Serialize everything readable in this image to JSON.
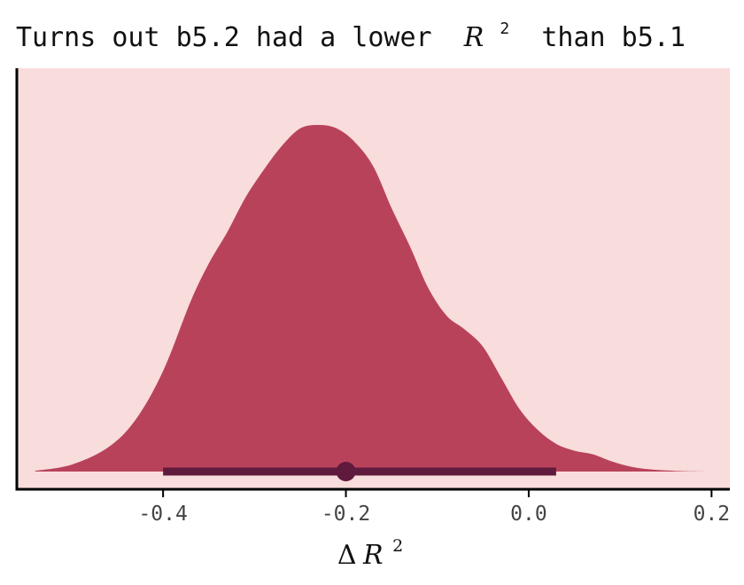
{
  "chart_data": {
    "type": "area",
    "title_parts": [
      "Turns out b5.2 had a lower ",
      "R",
      "2",
      " than b5.1"
    ],
    "xlabel_parts": [
      "Δ",
      "R",
      "2"
    ],
    "ylabel": "",
    "xlim": [
      -0.56,
      0.22
    ],
    "ylim": [
      0,
      1.0
    ],
    "xticks": [
      -0.4,
      -0.2,
      0.0,
      0.2
    ],
    "xtick_labels": [
      "-0.4",
      "-0.2",
      "0.0",
      "0.2"
    ],
    "y_axis_ticks": "none",
    "grid": false,
    "legend": "none",
    "density": {
      "x": [
        -0.54,
        -0.5,
        -0.46,
        -0.43,
        -0.4,
        -0.37,
        -0.35,
        -0.33,
        -0.31,
        -0.29,
        -0.27,
        -0.25,
        -0.23,
        -0.21,
        -0.19,
        -0.17,
        -0.15,
        -0.13,
        -0.11,
        -0.09,
        -0.07,
        -0.05,
        -0.03,
        -0.01,
        0.01,
        0.03,
        0.05,
        0.07,
        0.09,
        0.11,
        0.13,
        0.16,
        0.2
      ],
      "y": [
        0.002,
        0.02,
        0.07,
        0.15,
        0.29,
        0.49,
        0.6,
        0.69,
        0.79,
        0.87,
        0.94,
        0.99,
        1.0,
        0.99,
        0.95,
        0.88,
        0.76,
        0.65,
        0.53,
        0.45,
        0.41,
        0.36,
        0.27,
        0.18,
        0.12,
        0.08,
        0.06,
        0.05,
        0.03,
        0.015,
        0.007,
        0.002,
        0.0
      ]
    },
    "interval": {
      "lower": -0.4,
      "upper": 0.03,
      "point": -0.2
    },
    "colors": {
      "panel_background": "#f9dcdc",
      "density_fill": "#b9425b",
      "interval": "#5f1a3d",
      "axis": "#000000",
      "text": "#111111"
    }
  }
}
